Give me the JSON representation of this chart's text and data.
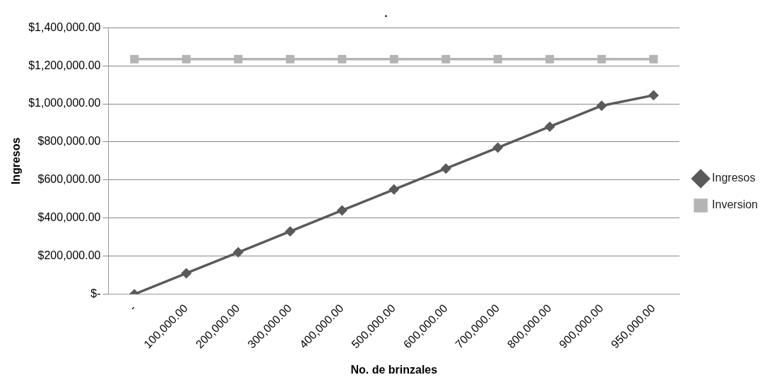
{
  "chart_data": {
    "type": "line",
    "title": ".",
    "xlabel": "No. de brinzales",
    "ylabel": "Ingresos",
    "categories": [
      "-",
      "100,000.00",
      "200,000.00",
      "300,000.00",
      "400,000.00",
      "500,000.00",
      "600,000.00",
      "700,000.00",
      "800,000.00",
      "900,000.00",
      "950,000.00"
    ],
    "series": [
      {
        "name": "Ingresos",
        "color": "#5a5a5a",
        "marker": "diamond",
        "values": [
          0,
          110000,
          220000,
          330000,
          440000,
          550000,
          660000,
          770000,
          880000,
          990000,
          1045000
        ]
      },
      {
        "name": "Inversion",
        "color": "#b4b4b4",
        "marker": "square",
        "values": [
          1235000,
          1235000,
          1235000,
          1235000,
          1235000,
          1235000,
          1235000,
          1235000,
          1235000,
          1235000,
          1235000
        ]
      }
    ],
    "ylim": [
      0,
      1400000
    ],
    "yticks": [
      {
        "value": 0,
        "label": "$-"
      },
      {
        "value": 200000,
        "label": "$200,000.00"
      },
      {
        "value": 400000,
        "label": "$400,000.00"
      },
      {
        "value": 600000,
        "label": "$600,000.00"
      },
      {
        "value": 800000,
        "label": "$800,000.00"
      },
      {
        "value": 1000000,
        "label": "$1,000,000.00"
      },
      {
        "value": 1200000,
        "label": "$1,200,000.00"
      },
      {
        "value": 1400000,
        "label": "$1,400,000.00"
      }
    ],
    "grid": "y",
    "legend": "right",
    "line_style": "solid"
  }
}
